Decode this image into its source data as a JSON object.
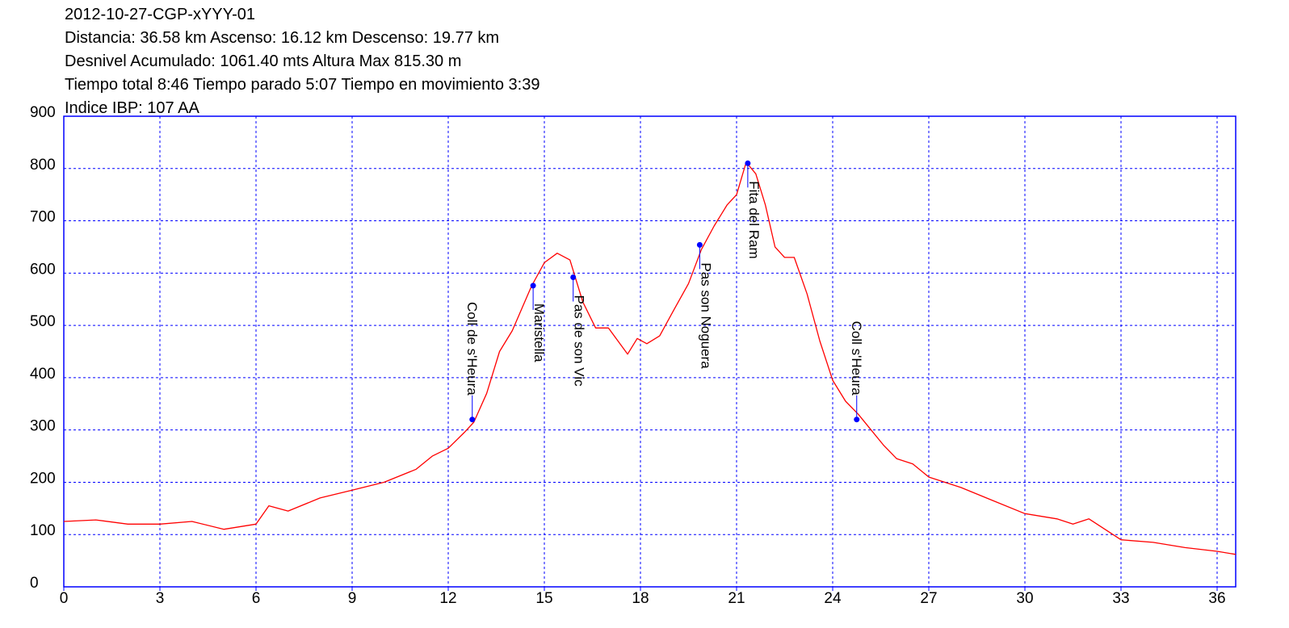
{
  "header": {
    "line1": "2012-10-27-CGP-xYYY-01",
    "line2": "Distancia: 36.58 km Ascenso: 16.12 km Descenso: 19.77 km",
    "line3": "Desnivel Acumulado: 1061.40 mts  Altura Max 815.30 m",
    "line4": "Tiempo total 8:46 Tiempo parado 5:07 Tiempo en movimiento 3:39",
    "line5": "Indice IBP: 107 AA"
  },
  "colors": {
    "frame": "#0000ff",
    "grid": "#0000ff",
    "line": "#ff0000",
    "marker": "#0000ff"
  },
  "chart_data": {
    "type": "line",
    "xlim": [
      0,
      36.58
    ],
    "ylim": [
      0,
      900
    ],
    "xticks": [
      0,
      3,
      6,
      9,
      12,
      15,
      18,
      21,
      24,
      27,
      30,
      33,
      36
    ],
    "yticks": [
      0,
      100,
      200,
      300,
      400,
      500,
      600,
      700,
      800,
      900
    ],
    "grid": true,
    "series": [
      {
        "x": [
          0,
          1,
          2,
          3,
          4,
          5,
          6,
          6.4,
          7,
          8,
          9,
          10,
          11,
          11.5,
          12,
          12.5,
          12.8,
          13.2,
          13.6,
          14,
          14.6,
          15,
          15.4,
          15.8,
          16.2,
          16.6,
          17,
          17.3,
          17.6,
          17.9,
          18.2,
          18.6,
          19,
          19.5,
          19.9,
          20.3,
          20.7,
          21,
          21.3,
          21.6,
          21.9,
          22.2,
          22.5,
          22.8,
          23.2,
          23.6,
          24,
          24.4,
          24.8,
          25.2,
          25.6,
          26,
          26.5,
          27,
          28,
          29,
          30,
          31,
          31.5,
          32,
          33,
          34,
          35,
          36,
          36.58
        ],
        "y": [
          125,
          128,
          120,
          120,
          125,
          110,
          120,
          155,
          145,
          170,
          185,
          200,
          225,
          250,
          265,
          295,
          315,
          370,
          450,
          490,
          575,
          620,
          638,
          625,
          545,
          495,
          495,
          470,
          445,
          475,
          465,
          480,
          525,
          580,
          645,
          690,
          730,
          750,
          812,
          790,
          730,
          650,
          630,
          630,
          560,
          470,
          395,
          355,
          330,
          300,
          270,
          245,
          235,
          210,
          190,
          165,
          140,
          130,
          120,
          130,
          90,
          85,
          75,
          68,
          62
        ]
      }
    ],
    "waypoints": [
      {
        "x": 12.75,
        "y": 320,
        "label": "Coll de s'Heura"
      },
      {
        "x": 14.65,
        "y": 576,
        "label": "Maristella"
      },
      {
        "x": 15.9,
        "y": 592,
        "label": "Pas de son Vic"
      },
      {
        "x": 19.85,
        "y": 654,
        "label": "Pas son Noguera"
      },
      {
        "x": 21.35,
        "y": 810,
        "label": "Fita del Ram"
      },
      {
        "x": 24.75,
        "y": 320,
        "label": "Coll s'Heura"
      }
    ]
  }
}
